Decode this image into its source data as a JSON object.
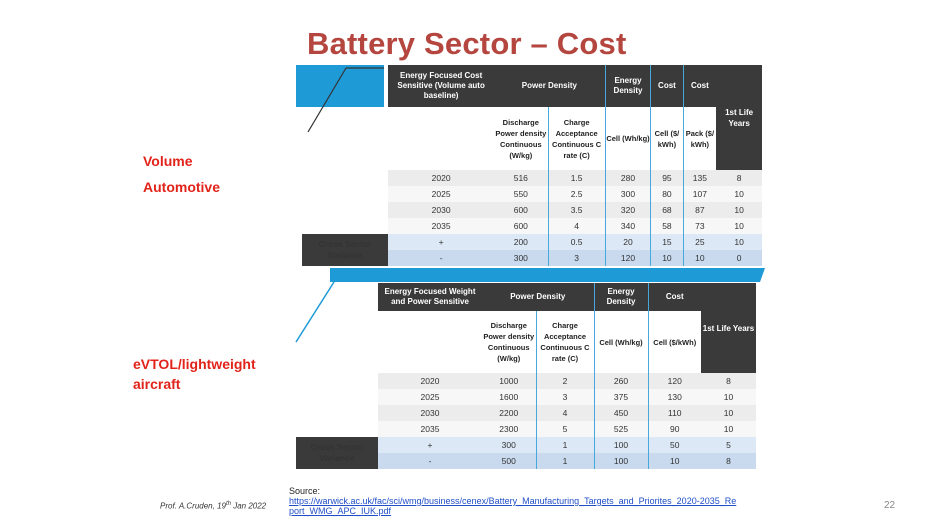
{
  "title": "Battery Sector – Cost",
  "labels": {
    "volume": "Volume",
    "automotive": "Automotive",
    "evtol": "eVTOL/lightweight aircraft"
  },
  "table1": {
    "h_energy": "Energy Focused Cost Sensitive (Volume auto baseline)",
    "h_power": "Power Density",
    "h_edens": "Energy Density",
    "h_cost1": "Cost",
    "h_cost2": "Cost",
    "h_life": "1st Life Years",
    "s_discharge": "Discharge Power density Continuous (W/kg)",
    "s_charge": "Charge Acceptance Continuous C rate (C)",
    "s_cell": "Cell (Wh/kg)",
    "s_cellcost": "Cell ($/ kWh)",
    "s_packcost": "Pack ($/ kWh)",
    "variance": "Cross Sector Variance",
    "rows": [
      [
        "2020",
        "516",
        "1.5",
        "280",
        "95",
        "135",
        "8"
      ],
      [
        "2025",
        "550",
        "2.5",
        "300",
        "80",
        "107",
        "10"
      ],
      [
        "2030",
        "600",
        "3.5",
        "320",
        "68",
        "87",
        "10"
      ],
      [
        "2035",
        "600",
        "4",
        "340",
        "58",
        "73",
        "10"
      ],
      [
        "+",
        "200",
        "0.5",
        "20",
        "15",
        "25",
        "10"
      ],
      [
        "-",
        "300",
        "3",
        "120",
        "10",
        "10",
        "0"
      ]
    ]
  },
  "table2": {
    "h_energy": "Energy Focused Weight and Power Sensitive",
    "h_power": "Power Density",
    "h_edens": "Energy Density",
    "h_cost": "Cost",
    "h_life": "1st Life Years",
    "s_discharge": "Discharge Power density Continuous (W/kg)",
    "s_charge": "Charge Acceptance Continuous C rate (C)",
    "s_cell": "Cell (Wh/kg)",
    "s_cellcost": "Cell ($/kWh)",
    "variance": "Cross Sector Variance",
    "rows": [
      [
        "2020",
        "1000",
        "2",
        "260",
        "120",
        "8"
      ],
      [
        "2025",
        "1600",
        "3",
        "375",
        "130",
        "10"
      ],
      [
        "2030",
        "2200",
        "4",
        "450",
        "110",
        "10"
      ],
      [
        "2035",
        "2300",
        "5",
        "525",
        "90",
        "10"
      ],
      [
        "+",
        "300",
        "1",
        "100",
        "50",
        "5"
      ],
      [
        "-",
        "500",
        "1",
        "100",
        "10",
        "8"
      ]
    ]
  },
  "source": {
    "label": "Source:",
    "url": "https://warwick.ac.uk/fac/sci/wmg/business/cenex/Battery_Manufacturing_Targets_and_Priorites_2020-2035_Report_WMG_APC_IUK.pdf"
  },
  "footer": {
    "author": "Prof. A.Cruden, 19",
    "sup": "th",
    "date": " Jan 2022"
  },
  "page_number": "22",
  "colors": {
    "title": "#b5463f",
    "label": "#e2231a",
    "accent": "#1e9ad6",
    "header": "#3a3a3a"
  }
}
